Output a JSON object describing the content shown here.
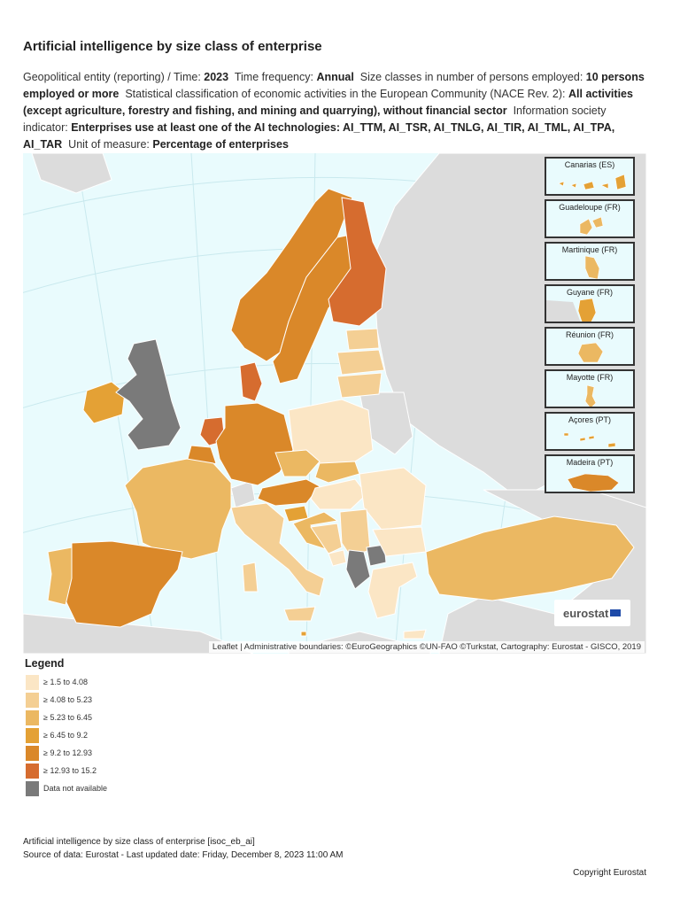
{
  "header": {
    "title": "Artificial intelligence by size class of enterprise"
  },
  "filters": {
    "geo_label": "Geopolitical entity (reporting)",
    "time_label": " / Time:",
    "time_value": "2023",
    "freq_label": "Time frequency:",
    "freq_value": "Annual",
    "size_label": "Size classes in number of persons employed:",
    "size_value": "10 persons employed or more",
    "nace_label": "Statistical classification of economic activities in the European Community (NACE Rev. 2):",
    "nace_value": "All activities (except agriculture, forestry and fishing, and mining and quarrying), without financial sector",
    "indic_label": "Information society indicator:",
    "indic_value": "Enterprises use at least one of the AI technologies: AI_TTM, AI_TSR, AI_TNLG, AI_TIR, AI_TML, AI_TPA, AI_TAR",
    "unit_label": "Unit of measure:",
    "unit_value": "Percentage of enterprises"
  },
  "map": {
    "attribution": "Leaflet | Administrative boundaries: ©EuroGeographics ©UN-FAO ©Turkstat, Cartography: Eurostat - GISCO, 2019",
    "logo_text": "eurostat",
    "insets": [
      {
        "label": "Canarias (ES)",
        "class": 3
      },
      {
        "label": "Guadeloupe (FR)",
        "class": 2
      },
      {
        "label": "Martinique (FR)",
        "class": 2
      },
      {
        "label": "Guyane (FR)",
        "class": 3
      },
      {
        "label": "Réunion (FR)",
        "class": 2
      },
      {
        "label": "Mayotte (FR)",
        "class": 2
      },
      {
        "label": "Açores (PT)",
        "class": 3
      },
      {
        "label": "Madeira (PT)",
        "class": 4
      }
    ]
  },
  "chart_data": {
    "type": "choropleth",
    "title": "Artificial intelligence by size class of enterprise",
    "unit": "Percentage of enterprises",
    "classes": [
      {
        "label": "≥ 1.5 to 4.08",
        "color": "#fbe6c5"
      },
      {
        "label": "≥ 4.08 to 5.23",
        "color": "#f4cf94"
      },
      {
        "label": "≥ 5.23 to 6.45",
        "color": "#ebb862"
      },
      {
        "label": "≥ 6.45 to 9.2",
        "color": "#e4a135"
      },
      {
        "label": "≥ 9.2 to 12.93",
        "color": "#da8829"
      },
      {
        "label": "≥ 12.93 to 15.2",
        "color": "#d66c2f"
      },
      {
        "label": "Data not available",
        "color": "#7a7a7a"
      }
    ],
    "regions": [
      {
        "name": "Finland",
        "class": 5
      },
      {
        "name": "Denmark",
        "class": 5
      },
      {
        "name": "Netherlands",
        "class": 5
      },
      {
        "name": "Sweden",
        "class": 4
      },
      {
        "name": "Norway",
        "class": 4
      },
      {
        "name": "Germany",
        "class": 4
      },
      {
        "name": "Belgium",
        "class": 4
      },
      {
        "name": "Austria",
        "class": 4
      },
      {
        "name": "Spain",
        "class": 4
      },
      {
        "name": "Ireland",
        "class": 3
      },
      {
        "name": "Slovenia",
        "class": 3
      },
      {
        "name": "Malta",
        "class": 3
      },
      {
        "name": "Portugal",
        "class": 2
      },
      {
        "name": "France",
        "class": 2
      },
      {
        "name": "Czechia",
        "class": 2
      },
      {
        "name": "Slovakia",
        "class": 2
      },
      {
        "name": "Croatia",
        "class": 2
      },
      {
        "name": "Türkiye",
        "class": 2
      },
      {
        "name": "Estonia",
        "class": 1
      },
      {
        "name": "Latvia",
        "class": 1
      },
      {
        "name": "Lithuania",
        "class": 1
      },
      {
        "name": "Italy",
        "class": 1
      },
      {
        "name": "Serbia",
        "class": 1
      },
      {
        "name": "Bosnia and Herzegovina",
        "class": 1
      },
      {
        "name": "Poland",
        "class": 0
      },
      {
        "name": "Hungary",
        "class": 0
      },
      {
        "name": "Romania",
        "class": 0
      },
      {
        "name": "Bulgaria",
        "class": 0
      },
      {
        "name": "Greece",
        "class": 0
      },
      {
        "name": "Montenegro",
        "class": 0
      },
      {
        "name": "United Kingdom",
        "class": 6
      },
      {
        "name": "North Macedonia",
        "class": 6
      },
      {
        "name": "Albania",
        "class": 6
      }
    ]
  },
  "legend": {
    "title": "Legend"
  },
  "footer": {
    "dataset": "Artificial intelligence by size class of enterprise [isoc_eb_ai]",
    "source": "Source of data: Eurostat - Last updated date: Friday, December 8, 2023 11:00 AM",
    "copyright": "Copyright Eurostat"
  }
}
